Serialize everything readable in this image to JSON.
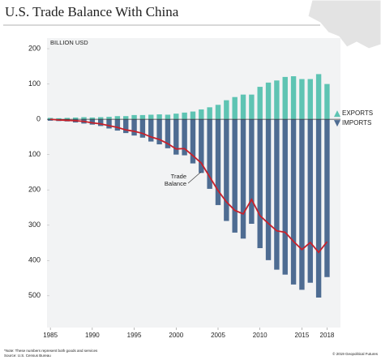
{
  "chart_data": {
    "type": "bar",
    "title": "U.S. Trade Balance With China",
    "y_label": "BILLION USD",
    "x": [
      1985,
      1986,
      1987,
      1988,
      1989,
      1990,
      1991,
      1992,
      1993,
      1994,
      1995,
      1996,
      1997,
      1998,
      1999,
      2000,
      2001,
      2002,
      2003,
      2004,
      2005,
      2006,
      2007,
      2008,
      2009,
      2010,
      2011,
      2012,
      2013,
      2014,
      2015,
      2016,
      2017,
      2018
    ],
    "xlim": [
      1984.6,
      2019.6
    ],
    "xticks": [
      1985,
      1990,
      1995,
      2000,
      2005,
      2010,
      2015,
      2018
    ],
    "ylim": [
      -590,
      230
    ],
    "yticks": [
      200,
      100,
      0,
      {
        "value": -100,
        "label": "100"
      },
      {
        "value": -200,
        "label": "200"
      },
      {
        "value": -300,
        "label": "300"
      },
      {
        "value": -400,
        "label": "400"
      },
      {
        "value": -500,
        "label": "500"
      }
    ],
    "series": [
      {
        "name": "EXPORTS",
        "type": "bar",
        "color": "#5ec4b3",
        "values": [
          4,
          3,
          4,
          5,
          6,
          5,
          6,
          7,
          9,
          9,
          12,
          12,
          13,
          14,
          13,
          16,
          19,
          22,
          28,
          34,
          41,
          54,
          63,
          70,
          70,
          92,
          104,
          110,
          120,
          122,
          114,
          114,
          128,
          100
        ]
      },
      {
        "name": "IMPORTS",
        "type": "bar",
        "color": "#4e6c92",
        "values": [
          -4,
          -5,
          -6,
          -9,
          -12,
          -15,
          -19,
          -26,
          -32,
          -39,
          -46,
          -52,
          -63,
          -71,
          -82,
          -100,
          -102,
          -125,
          -152,
          -197,
          -243,
          -288,
          -321,
          -338,
          -296,
          -365,
          -399,
          -426,
          -440,
          -468,
          -483,
          -463,
          -505,
          -447
        ]
      },
      {
        "name": "Trade Balance",
        "type": "line",
        "color": "#c8202a",
        "values": [
          0,
          -2,
          -3,
          -4,
          -6,
          -10,
          -13,
          -18,
          -23,
          -30,
          -34,
          -40,
          -50,
          -57,
          -69,
          -84,
          -83,
          -103,
          -124,
          -163,
          -202,
          -234,
          -258,
          -268,
          -227,
          -273,
          -295,
          -316,
          -320,
          -346,
          -369,
          -349,
          -377,
          -347
        ]
      }
    ],
    "notes": [
      "*Note: These numbers represent both goods and services",
      "Source: U.S. Census Bureau"
    ],
    "credit": "© 2019 Geopolitical Futures"
  }
}
